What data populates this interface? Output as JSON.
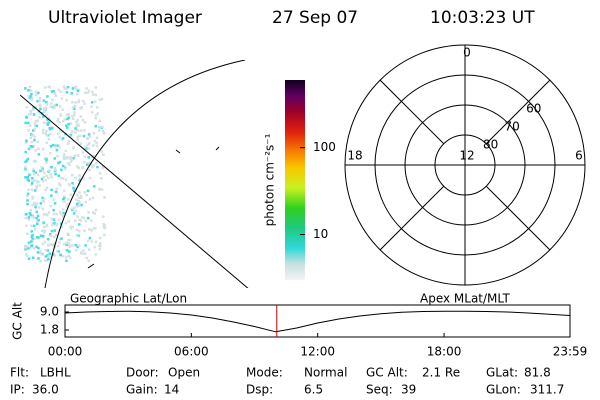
{
  "header": {
    "title": "Ultraviolet Imager",
    "date": "27 Sep 07",
    "time": "10:03:23 UT"
  },
  "colorbar": {
    "label": "photon cm⁻²s⁻¹",
    "scale": "log",
    "zlim": [
      3,
      600
    ],
    "ticks": [
      10,
      100
    ]
  },
  "polar": {
    "rlim": [
      90,
      50
    ],
    "lat_rings": [
      80,
      70,
      60
    ],
    "mlt_labels": [
      12,
      6,
      0,
      18
    ]
  },
  "chart_data": {
    "type": "line",
    "ylabel": "GC Alt",
    "annotations": [
      "Geographic Lat/Lon",
      "Apex MLat/MLT"
    ],
    "x": [
      0,
      1,
      2,
      3,
      4,
      5,
      6,
      7,
      8,
      9,
      10,
      11,
      12,
      13,
      14,
      15,
      16,
      17,
      18,
      19,
      20,
      21,
      22,
      23,
      23.98
    ],
    "values": [
      8.6,
      9.0,
      9.2,
      9.3,
      9.1,
      8.6,
      7.8,
      6.6,
      5.0,
      3.2,
      1.1,
      2.6,
      4.6,
      6.2,
      7.4,
      8.3,
      8.9,
      9.2,
      9.3,
      9.3,
      9.2,
      9.0,
      8.6,
      8.1,
      7.6
    ],
    "color": "#000000",
    "xlim": [
      0,
      23.98
    ],
    "xticks": [
      {
        "value": 0,
        "label": "00:00"
      },
      {
        "value": 6,
        "label": "06:00"
      },
      {
        "value": 12,
        "label": "12:00"
      },
      {
        "value": 18,
        "label": "18:00"
      },
      {
        "value": 23.98,
        "label": "23:59"
      }
    ],
    "ylim": [
      -1,
      11.8
    ],
    "yticks": [
      {
        "value": 9,
        "label": "9.0"
      },
      {
        "value": 1.8,
        "label": "1.8"
      }
    ],
    "marker": {
      "x": 10.056,
      "color": "#cc0000"
    }
  },
  "footer": {
    "rows": [
      [
        {
          "label": "Flt:",
          "value": "LBHL"
        },
        {
          "label": "Door:",
          "value": "Open"
        },
        {
          "label": "Mode:",
          "value": "Normal"
        },
        {
          "label": "GC Alt:",
          "value": "2.1 Re"
        },
        {
          "label": "GLat:",
          "value": "81.8"
        }
      ],
      [
        {
          "label": "IP:",
          "value": "36.0"
        },
        {
          "label": "Gain:",
          "value": "14"
        },
        {
          "label": "Dsp:",
          "value": "6.5"
        },
        {
          "label": "Seq:",
          "value": "39"
        },
        {
          "label": "GLon:",
          "value": "311.7"
        }
      ]
    ]
  }
}
